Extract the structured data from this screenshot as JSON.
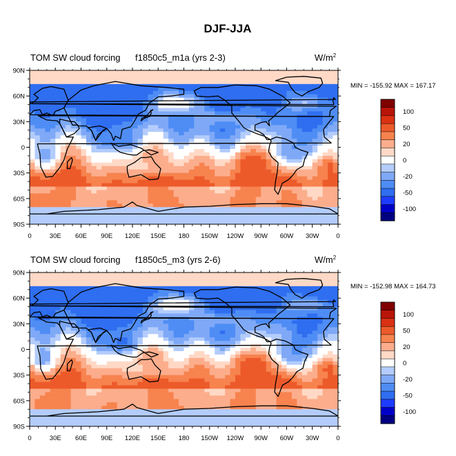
{
  "figure": {
    "title": "DJF-JJA"
  },
  "colors": {
    "scale": [
      "#000080",
      "#0000c8",
      "#1e3cff",
      "#2f6ef0",
      "#4f8df5",
      "#7fa9f7",
      "#b3ccfb",
      "#ffffff",
      "#ffd9c6",
      "#fcad8c",
      "#f7834f",
      "#ed5a2a",
      "#d93112",
      "#b81408",
      "#800000"
    ],
    "land": "#000000",
    "polar": "#d6e8fb"
  },
  "chart_data": [
    {
      "type": "heatmap",
      "title": "TOM SW cloud forcing",
      "case": "f1850c5_m1a (yrs 2-3)",
      "units": "W/m",
      "units_sup": "2",
      "min_max_text": "MIN = -155.92 MAX = 167.17",
      "min": -155.92,
      "max": 167.17,
      "xlim": [
        0,
        360
      ],
      "ylim": [
        -90,
        90
      ],
      "x_ticks": [
        "0",
        "30E",
        "60E",
        "90E",
        "120E",
        "150E",
        "180",
        "150W",
        "120W",
        "90W",
        "60W",
        "30W",
        "0"
      ],
      "y_ticks": [
        "90N",
        "60N",
        "30N",
        "0",
        "30S",
        "60S",
        "90S"
      ],
      "colorbar_labels": [
        "100",
        "50",
        "20",
        "0",
        "-20",
        "-50",
        "-100"
      ],
      "colorbar_levels": [
        -140,
        -120,
        -100,
        -80,
        -50,
        -35,
        -20,
        -10,
        0,
        10,
        20,
        35,
        50,
        80,
        100,
        120,
        140
      ]
    },
    {
      "type": "heatmap",
      "title": "TOM SW cloud forcing",
      "case": "f1850c5_m3 (yrs 2-6)",
      "units": "W/m",
      "units_sup": "2",
      "min_max_text": "MIN = -152.98 MAX = 164.73",
      "min": -152.98,
      "max": 164.73,
      "xlim": [
        0,
        360
      ],
      "ylim": [
        -90,
        90
      ],
      "x_ticks": [
        "0",
        "30E",
        "60E",
        "90E",
        "120E",
        "150E",
        "180",
        "150W",
        "120W",
        "90W",
        "60W",
        "30W",
        "0"
      ],
      "y_ticks": [
        "90N",
        "60N",
        "30N",
        "0",
        "30S",
        "60S",
        "90S"
      ],
      "colorbar_labels": [
        "100",
        "50",
        "20",
        "0",
        "-20",
        "-50",
        "-100"
      ],
      "colorbar_levels": [
        -140,
        -120,
        -100,
        -80,
        -50,
        -35,
        -20,
        -10,
        0,
        10,
        20,
        35,
        50,
        80,
        100,
        120,
        140
      ]
    }
  ]
}
